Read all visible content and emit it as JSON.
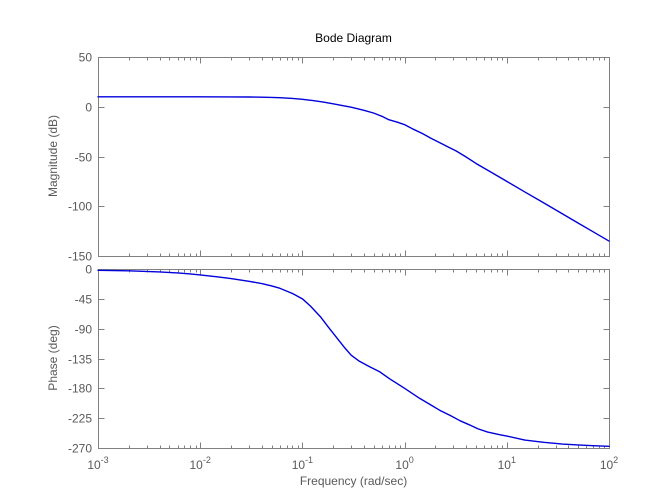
{
  "title": "Bode Diagram",
  "colors": {
    "background": "#ffffff",
    "axis_line": "#808080",
    "tick_label": "#595959",
    "title_text": "#000000",
    "curve": "#0000dd"
  },
  "chart_data": [
    {
      "type": "line",
      "title": "Bode Diagram",
      "ylabel": "Magnitude (dB)",
      "xlabel": "",
      "x_scale": "log",
      "xlim": [
        0.001,
        100
      ],
      "ylim": [
        -150,
        50
      ],
      "yticks": [
        50,
        0,
        -50,
        -100,
        -150
      ],
      "xticks": {
        "base": 10,
        "exponents": [
          -3,
          -2,
          -1,
          0,
          1,
          2
        ]
      },
      "grid": false,
      "legend": "none",
      "series": [
        {
          "name": "magnitude",
          "points": [
            [
              0.001,
              10
            ],
            [
              0.005,
              10
            ],
            [
              0.01,
              10
            ],
            [
              0.02,
              9.9
            ],
            [
              0.03,
              9.8
            ],
            [
              0.04,
              9.6
            ],
            [
              0.05,
              9.4
            ],
            [
              0.06,
              9.1
            ],
            [
              0.08,
              8.4
            ],
            [
              0.1,
              7.5
            ],
            [
              0.13,
              6.1
            ],
            [
              0.16,
              4.7
            ],
            [
              0.2,
              3.0
            ],
            [
              0.25,
              1.1
            ],
            [
              0.3,
              -0.4
            ],
            [
              0.4,
              -3.6
            ],
            [
              0.5,
              -6.4
            ],
            [
              0.6,
              -9.6
            ],
            [
              0.7,
              -13
            ],
            [
              0.85,
              -15.5
            ],
            [
              1.0,
              -18
            ],
            [
              1.2,
              -22.3
            ],
            [
              1.5,
              -27
            ],
            [
              1.8,
              -31.5
            ],
            [
              2.2,
              -36
            ],
            [
              2.7,
              -40.7
            ],
            [
              3.2,
              -44.5
            ],
            [
              4,
              -50.5
            ],
            [
              5,
              -57
            ],
            [
              7,
              -65.7
            ],
            [
              10,
              -75
            ],
            [
              15,
              -85.6
            ],
            [
              22,
              -95.5
            ],
            [
              32,
              -105.3
            ],
            [
              50,
              -117
            ],
            [
              70,
              -125.7
            ],
            [
              100,
              -135
            ]
          ]
        }
      ]
    },
    {
      "type": "line",
      "title": "",
      "ylabel": "Phase (deg)",
      "xlabel": "Frequency  (rad/sec)",
      "x_scale": "log",
      "xlim": [
        0.001,
        100
      ],
      "ylim": [
        -270,
        0
      ],
      "yticks": [
        0,
        -45,
        -90,
        -135,
        -180,
        -225,
        -270
      ],
      "xticks": {
        "base": 10,
        "exponents": [
          -3,
          -2,
          -1,
          0,
          1,
          2
        ]
      },
      "grid": false,
      "legend": "none",
      "series": [
        {
          "name": "phase",
          "points": [
            [
              0.001,
              -2
            ],
            [
              0.002,
              -2.8
            ],
            [
              0.004,
              -4.5
            ],
            [
              0.006,
              -6
            ],
            [
              0.008,
              -7.5
            ],
            [
              0.01,
              -9
            ],
            [
              0.015,
              -12
            ],
            [
              0.02,
              -14.5
            ],
            [
              0.03,
              -18.5
            ],
            [
              0.04,
              -22
            ],
            [
              0.05,
              -25.5
            ],
            [
              0.06,
              -29
            ],
            [
              0.08,
              -37
            ],
            [
              0.1,
              -45
            ],
            [
              0.12,
              -56
            ],
            [
              0.15,
              -72
            ],
            [
              0.18,
              -88
            ],
            [
              0.22,
              -105
            ],
            [
              0.26,
              -119
            ],
            [
              0.3,
              -130
            ],
            [
              0.36,
              -139
            ],
            [
              0.45,
              -147
            ],
            [
              0.57,
              -155
            ],
            [
              0.72,
              -166
            ],
            [
              1.0,
              -180
            ],
            [
              1.4,
              -195
            ],
            [
              1.8,
              -205
            ],
            [
              2.2,
              -213
            ],
            [
              2.8,
              -221
            ],
            [
              3.5,
              -229
            ],
            [
              4.3,
              -235
            ],
            [
              5.2,
              -241
            ],
            [
              6.5,
              -246
            ],
            [
              8.5,
              -250
            ],
            [
              10,
              -252
            ],
            [
              15,
              -258
            ],
            [
              23,
              -261.5
            ],
            [
              35,
              -264
            ],
            [
              52,
              -265.5
            ],
            [
              70,
              -266.5
            ],
            [
              100,
              -267.5
            ]
          ]
        }
      ]
    }
  ]
}
